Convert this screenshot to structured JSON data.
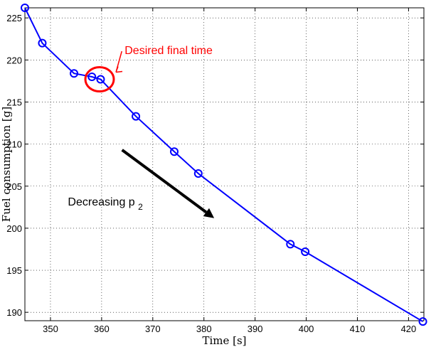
{
  "chart_data": {
    "type": "line",
    "xlabel": "Time [s]",
    "ylabel": "Fuel consumption [g]",
    "xlim": [
      345,
      423
    ],
    "ylim": [
      189,
      226.2
    ],
    "xticks": [
      350,
      360,
      370,
      380,
      390,
      400,
      410,
      420
    ],
    "yticks": [
      190,
      195,
      200,
      205,
      210,
      215,
      220,
      225
    ],
    "grid": true,
    "series": [
      {
        "x": [
          345.0,
          348.4,
          354.6,
          358.1,
          359.8,
          366.7,
          374.2,
          378.9,
          396.9,
          399.8,
          422.8
        ],
        "y": [
          226.2,
          222.0,
          218.4,
          218.0,
          217.7,
          213.3,
          209.1,
          206.5,
          198.1,
          197.2,
          188.9
        ],
        "color": "#0000ff",
        "marker": "circle"
      }
    ],
    "annotations": {
      "desired_final_time": {
        "text": "Desired final time",
        "color": "#ff0000",
        "circle_at": [
          359.6,
          217.7
        ],
        "text_at": [
          364.5,
          220.7
        ]
      },
      "decreasing_p2": {
        "text": "Decreasing p",
        "subscript": "2",
        "color": "#000000",
        "label_at": [
          353.4,
          202.7
        ],
        "arrow_from": [
          364.0,
          209.3
        ],
        "arrow_to": [
          382.0,
          201.2
        ]
      }
    }
  }
}
